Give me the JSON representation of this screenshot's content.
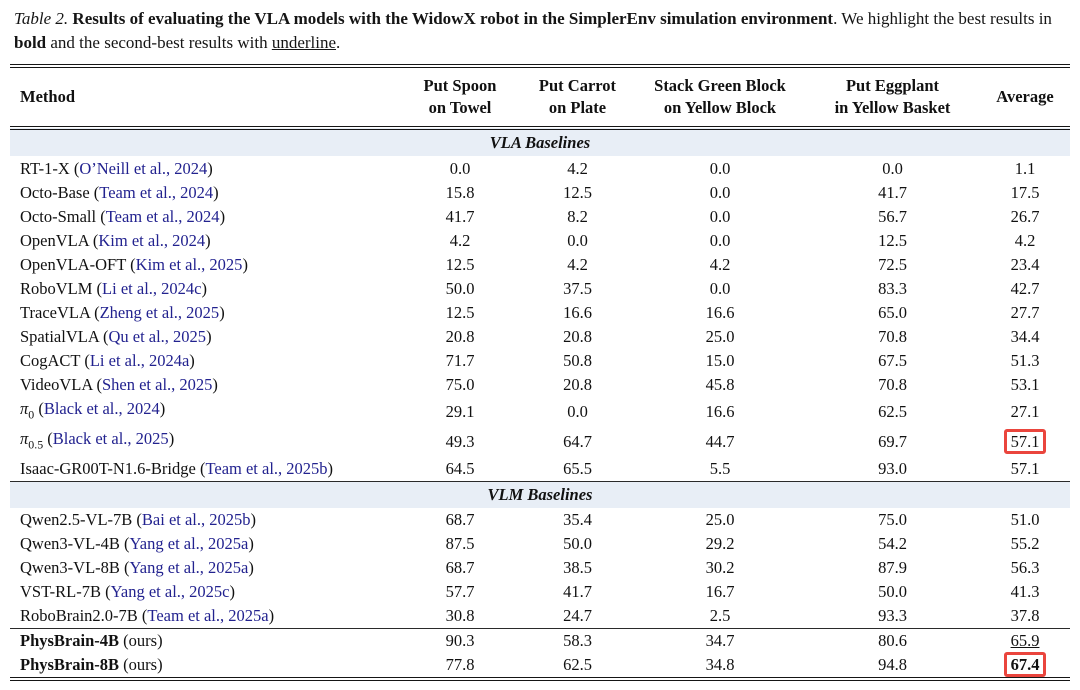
{
  "caption": {
    "label": "Table 2.",
    "title_bold": "Results of evaluating the VLA models with the WidowX robot in the SimplerEnv simulation environment",
    "rest_1": ". We highlight the best results in ",
    "bold_word": "bold",
    "rest_2": " and the second-best results with ",
    "underline_word": "underline",
    "rest_3": "."
  },
  "colors": {
    "citation_blue": "#22228f",
    "section_band_bg": "#e8eef6",
    "highlight_box_red": "#ea453d"
  },
  "table": {
    "columns": [
      {
        "line1": "Method",
        "line2": ""
      },
      {
        "line1": "Put Spoon",
        "line2": "on Towel"
      },
      {
        "line1": "Put Carrot",
        "line2": "on Plate"
      },
      {
        "line1": "Stack Green Block",
        "line2": "on Yellow Block"
      },
      {
        "line1": "Put Eggplant",
        "line2": "in Yellow Basket"
      },
      {
        "line1": "Average",
        "line2": ""
      }
    ],
    "sections": [
      {
        "header": "VLA Baselines",
        "band": true,
        "band_ruled": false,
        "rows": [
          {
            "method": "RT-1-X",
            "cite": "O’Neill et al., 2024",
            "values": [
              "0.0",
              "4.2",
              "0.0",
              "0.0",
              "1.1"
            ]
          },
          {
            "method": "Octo-Base",
            "cite": "Team et al., 2024",
            "values": [
              "15.8",
              "12.5",
              "0.0",
              "41.7",
              "17.5"
            ]
          },
          {
            "method": "Octo-Small",
            "cite": "Team et al., 2024",
            "values": [
              "41.7",
              "8.2",
              "0.0",
              "56.7",
              "26.7"
            ]
          },
          {
            "method": "OpenVLA",
            "cite": "Kim et al., 2024",
            "values": [
              "4.2",
              "0.0",
              "0.0",
              "12.5",
              "4.2"
            ]
          },
          {
            "method": "OpenVLA-OFT",
            "cite": "Kim et al., 2025",
            "values": [
              "12.5",
              "4.2",
              "4.2",
              "72.5",
              "23.4"
            ]
          },
          {
            "method": "RoboVLM",
            "cite": "Li et al., 2024c",
            "values": [
              "50.0",
              "37.5",
              "0.0",
              "83.3",
              "42.7"
            ]
          },
          {
            "method": "TraceVLA",
            "cite": "Zheng et al., 2025",
            "values": [
              "12.5",
              "16.6",
              "16.6",
              "65.0",
              "27.7"
            ]
          },
          {
            "method": "SpatialVLA",
            "cite": "Qu et al., 2025",
            "values": [
              "20.8",
              "20.8",
              "25.0",
              "70.8",
              "34.4"
            ]
          },
          {
            "method": "CogACT",
            "cite": "Li et al., 2024a",
            "values": [
              "71.7",
              "50.8",
              "15.0",
              "67.5",
              "51.3"
            ]
          },
          {
            "method": "VideoVLA",
            "cite": "Shen et al., 2025",
            "values": [
              "75.0",
              "20.8",
              "45.8",
              "70.8",
              "53.1"
            ]
          },
          {
            "method": "π",
            "sub": "0",
            "cite": "Black et al., 2024",
            "values": [
              "29.1",
              "0.0",
              "16.6",
              "62.5",
              "27.1"
            ]
          },
          {
            "method": "π",
            "sub": "0.5",
            "cite": "Black et al., 2025",
            "values": [
              "49.3",
              "64.7",
              "44.7",
              "69.7",
              "57.1"
            ],
            "avg_redbox": true
          },
          {
            "method": "Isaac-GR00T-N1.6-Bridge",
            "cite": "Team et al., 2025b",
            "values": [
              "64.5",
              "65.5",
              "5.5",
              "93.0",
              "57.1"
            ]
          }
        ]
      },
      {
        "header": "VLM Baselines",
        "band": true,
        "band_ruled": true,
        "rows": [
          {
            "method": "Qwen2.5-VL-7B",
            "cite": "Bai et al., 2025b",
            "values": [
              "68.7",
              "35.4",
              "25.0",
              "75.0",
              "51.0"
            ]
          },
          {
            "method": "Qwen3-VL-4B",
            "cite": "Yang et al., 2025a",
            "values": [
              "87.5",
              "50.0",
              "29.2",
              "54.2",
              "55.2"
            ]
          },
          {
            "method": "Qwen3-VL-8B",
            "cite": "Yang et al., 2025a",
            "values": [
              "68.7",
              "38.5",
              "30.2",
              "87.9",
              "56.3"
            ]
          },
          {
            "method": "VST-RL-7B",
            "cite": "Yang et al., 2025c",
            "values": [
              "57.7",
              "41.7",
              "16.7",
              "50.0",
              "41.3"
            ]
          },
          {
            "method": "RoboBrain2.0-7B",
            "cite": "Team et al., 2025a",
            "values": [
              "30.8",
              "24.7",
              "2.5",
              "93.3",
              "37.8"
            ]
          }
        ]
      },
      {
        "header": null,
        "band": false,
        "band_ruled": false,
        "rows": [
          {
            "method": "PhysBrain-4B",
            "method_bold": true,
            "suffix": "(ours)",
            "values": [
              "90.3",
              "58.3",
              "34.7",
              "80.6",
              "65.9"
            ],
            "avg_underline": true
          },
          {
            "method": "PhysBrain-8B",
            "method_bold": true,
            "suffix": "(ours)",
            "values": [
              "77.8",
              "62.5",
              "34.8",
              "94.8",
              "67.4"
            ],
            "avg_bold": true,
            "avg_redbox": true
          }
        ]
      }
    ]
  }
}
